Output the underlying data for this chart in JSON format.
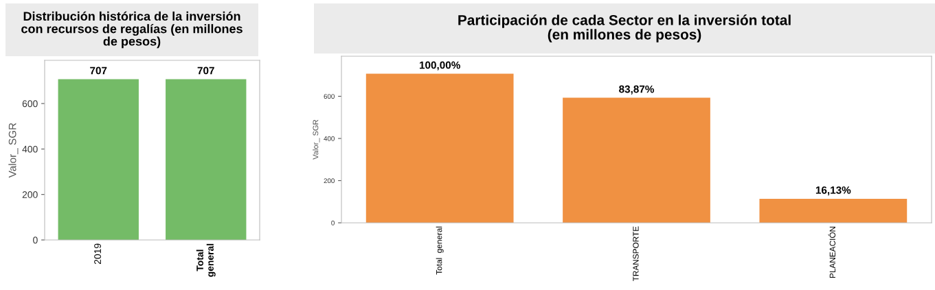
{
  "chart_data": [
    {
      "type": "bar",
      "title": "Distribución histórica de la inversión\ncon recursos de regalías (en millones\nde pesos)",
      "ylabel": "Valor_ SGR",
      "categories": [
        "2019",
        "Total\ngeneral"
      ],
      "values": [
        707,
        707
      ],
      "color": "#74bb67",
      "ylim": [
        0,
        790
      ],
      "yticks": [
        0,
        200,
        400,
        600
      ],
      "data_labels": true,
      "grid": false,
      "legend": false
    },
    {
      "type": "bar",
      "title": "Participación de cada Sector en la inversión total\n(en millones de pesos)",
      "ylabel": "Valor_ SGR",
      "categories": [
        "Total  general",
        "TRANSPORTE",
        "PLANEACIÓN"
      ],
      "values": [
        707,
        593,
        114
      ],
      "annotations": [
        {
          "text": "100,00%",
          "x": "Total  general",
          "y": 707
        },
        {
          "text": "83,87%",
          "x": "TRANSPORTE",
          "y": 593
        },
        {
          "text": "16,13%",
          "x": "PLANEACIÓN",
          "y": 114
        }
      ],
      "color": "#f09142",
      "ylim": [
        0,
        790
      ],
      "yticks": [
        0,
        200,
        400,
        600
      ],
      "grid": false,
      "legend": false
    }
  ]
}
